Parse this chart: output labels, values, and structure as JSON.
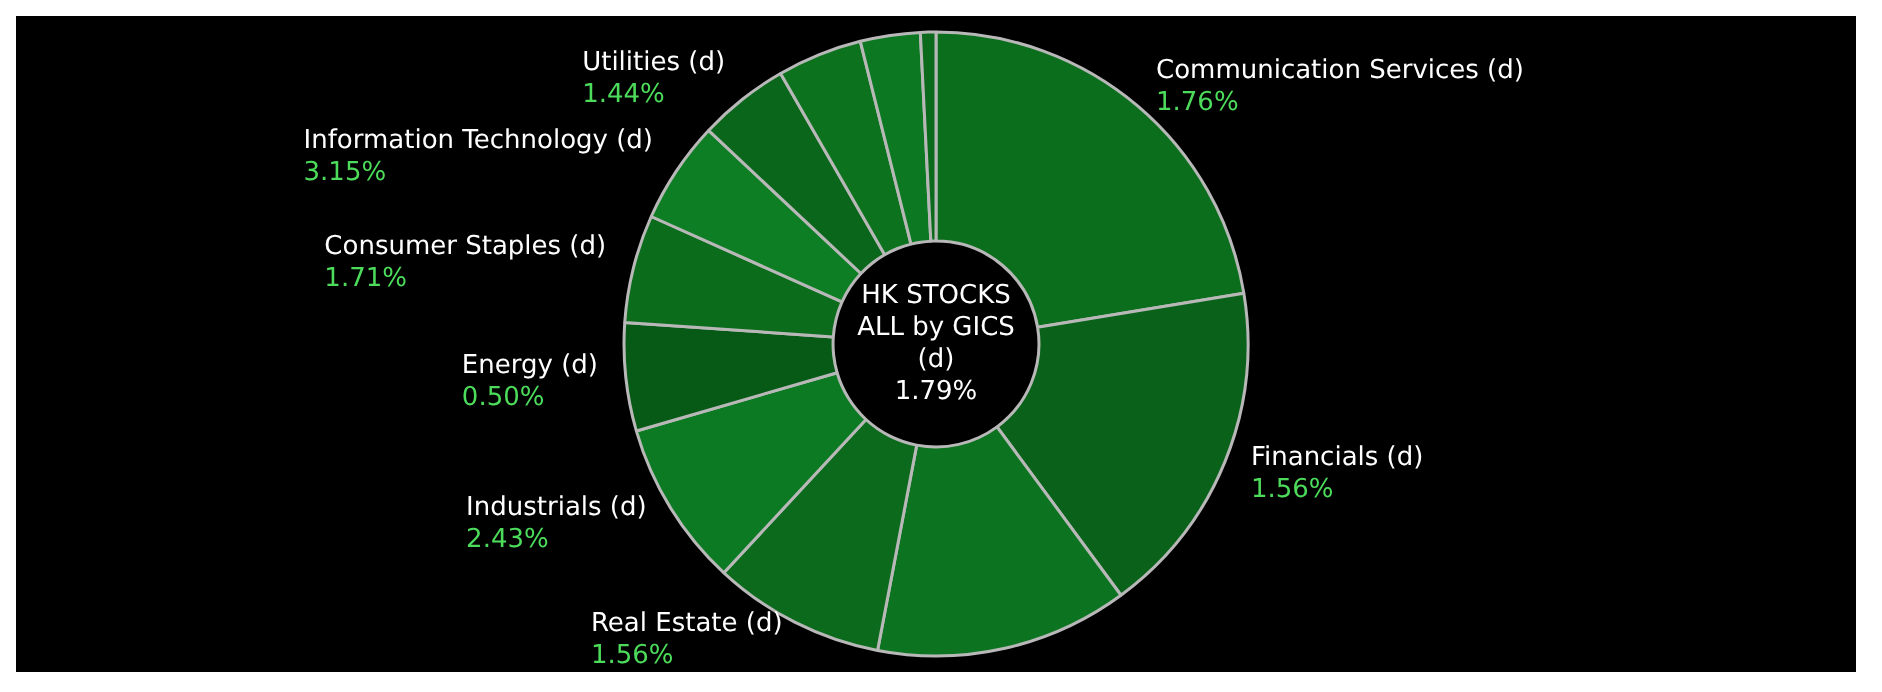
{
  "chart_data": {
    "type": "donut",
    "title": "HK STOCKS ALL by GICS (d)",
    "subtitle": "1.79%",
    "categories": [
      "Communication Services (d)",
      "Financials (d)",
      null,
      "Real Estate (d)",
      "Industrials (d)",
      "Energy (d)",
      "Consumer Staples (d)",
      "Information Technology (d)",
      "Utilities (d)",
      null,
      null,
      null
    ],
    "values": [
      22.4,
      17.5,
      13.1,
      8.9,
      8.6,
      5.6,
      5.6,
      5.3,
      4.7,
      4.4,
      3.1,
      0.8
    ],
    "annotations": [
      "1.76%",
      "1.56%",
      "1.56%",
      "2.43%",
      "0.50%",
      "1.71%",
      "3.15%",
      "1.44%"
    ],
    "colors": [
      "#0b6e1c",
      "#0a621a",
      "#0c7420",
      "#0b6a1c",
      "#0c7a22",
      "#075a16",
      "#0b6c1c",
      "#0e7e24",
      "#0a661a",
      "#0c721e",
      "#0d7822",
      "#0b6a1c"
    ]
  }
}
